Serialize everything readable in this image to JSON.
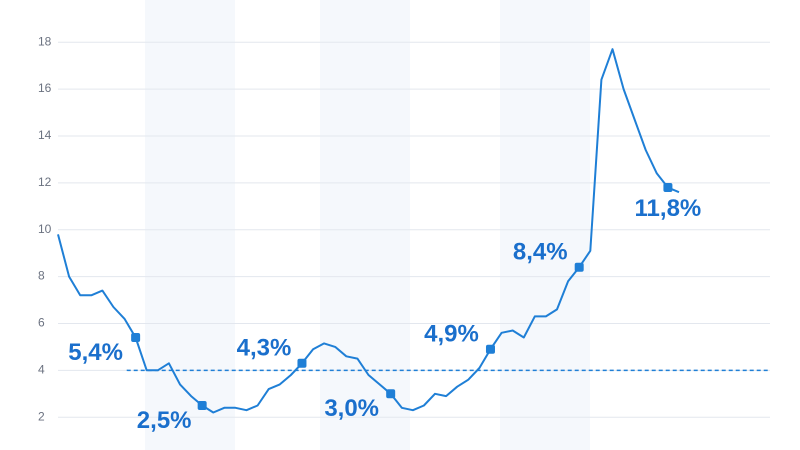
{
  "chart_data": {
    "type": "line",
    "values": [
      9.8,
      8.0,
      7.2,
      7.2,
      7.4,
      6.7,
      6.2,
      5.4,
      4.0,
      4.0,
      4.3,
      3.4,
      2.9,
      2.5,
      2.2,
      2.4,
      2.4,
      2.3,
      2.5,
      3.2,
      3.4,
      3.8,
      4.3,
      4.9,
      5.15,
      5.0,
      4.6,
      4.5,
      3.8,
      3.4,
      3.0,
      2.4,
      2.3,
      2.5,
      3.0,
      2.9,
      3.3,
      3.6,
      4.1,
      4.9,
      5.6,
      5.7,
      5.4,
      6.3,
      6.3,
      6.6,
      7.8,
      8.4,
      9.1,
      16.4,
      17.7,
      16.0,
      14.7,
      13.4,
      12.4,
      11.8,
      11.6
    ],
    "value_labels": [
      null,
      null,
      null,
      null,
      null,
      null,
      null,
      "5,4%",
      null,
      null,
      null,
      null,
      null,
      "2,5%",
      null,
      null,
      null,
      null,
      null,
      null,
      null,
      null,
      "4,3%",
      null,
      null,
      null,
      null,
      null,
      null,
      null,
      "3,0%",
      null,
      null,
      null,
      null,
      null,
      null,
      null,
      null,
      "4,9%",
      null,
      null,
      null,
      null,
      null,
      null,
      null,
      "8,4%",
      null,
      null,
      null,
      null,
      null,
      null,
      null,
      "11,8%",
      null
    ],
    "color": "#1f7fd6",
    "reference_line": 4,
    "ylim": [
      0.6,
      19.8
    ],
    "yticks": [
      2,
      4,
      6,
      8,
      10,
      12,
      14,
      16,
      18
    ],
    "grid": true
  }
}
